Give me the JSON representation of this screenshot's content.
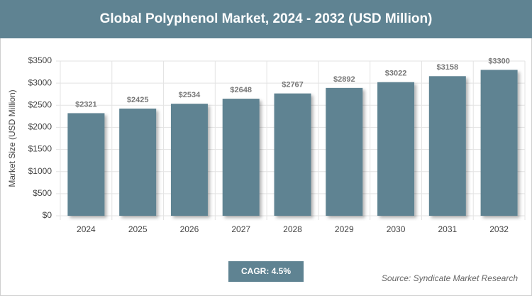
{
  "chart_data": {
    "type": "bar",
    "title": "Global Polyphenol Market, 2024 - 2032 (USD Million)",
    "y_label": "Market Size (USD Million)",
    "categories": [
      "2024",
      "2025",
      "2026",
      "2027",
      "2028",
      "2029",
      "2030",
      "2031",
      "2032"
    ],
    "values": [
      2321,
      2425,
      2534,
      2648,
      2767,
      2892,
      3022,
      3158,
      3300
    ],
    "value_labels": [
      "$2321",
      "$2425",
      "$2534",
      "$2648",
      "$2767",
      "$2892",
      "$3022",
      "$3158",
      "$3300"
    ],
    "color": "#5f8392",
    "ylim": [
      0,
      3500
    ],
    "yticks": [
      {
        "value": 0,
        "label": "$0"
      },
      {
        "value": 500,
        "label": "$500"
      },
      {
        "value": 1000,
        "label": "$1000"
      },
      {
        "value": 1500,
        "label": "$1500"
      },
      {
        "value": 2000,
        "label": "$2000"
      },
      {
        "value": 2500,
        "label": "$2500"
      },
      {
        "value": 3000,
        "label": "$3000"
      },
      {
        "value": 3500,
        "label": "$3500"
      }
    ],
    "grid": true,
    "cagr_label": "CAGR: 4.5%",
    "source": "Source: Syndicate Market Research"
  }
}
